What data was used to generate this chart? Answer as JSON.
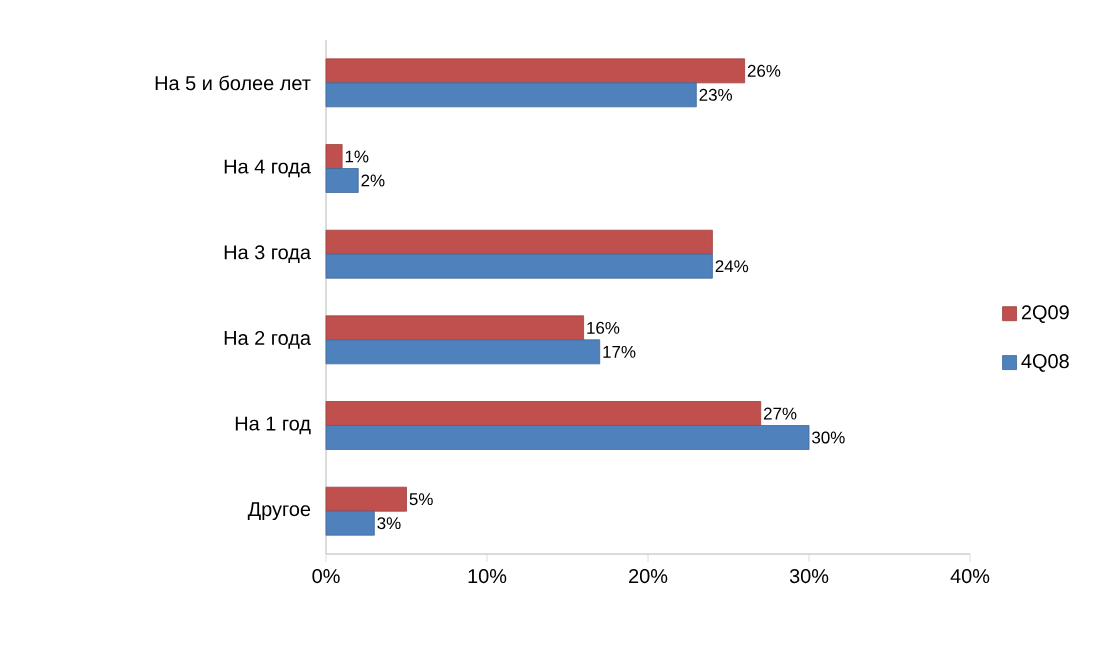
{
  "chart_data": {
    "type": "bar",
    "orientation": "horizontal",
    "categories": [
      "На 5 и более лет",
      "На 4 года",
      "На 3 года",
      "На 2 года",
      "На 1 год",
      "Другое"
    ],
    "series": [
      {
        "name": "2Q09",
        "color": "#c0504d",
        "values": [
          26,
          1,
          24,
          16,
          27,
          5
        ],
        "value_labels": [
          "26%",
          "1%",
          null,
          "16%",
          "27%",
          "5%"
        ]
      },
      {
        "name": "4Q08",
        "color": "#4f81bd",
        "values": [
          23,
          2,
          24,
          17,
          30,
          3
        ],
        "value_labels": [
          "23%",
          "2%",
          "24%",
          "17%",
          "30%",
          "3%"
        ]
      }
    ],
    "xlim": [
      0,
      40
    ],
    "xticks": [
      {
        "value": 0,
        "label": "0%"
      },
      {
        "value": 10,
        "label": "10%"
      },
      {
        "value": 20,
        "label": "20%"
      },
      {
        "value": 30,
        "label": "30%"
      },
      {
        "value": 40,
        "label": "40%"
      }
    ],
    "grid": false,
    "legend": "right"
  }
}
